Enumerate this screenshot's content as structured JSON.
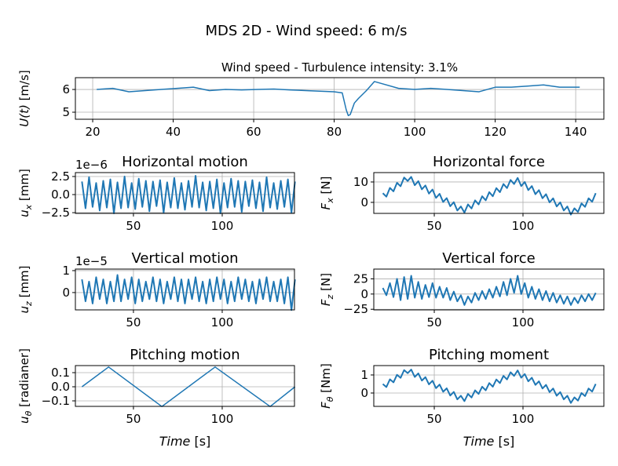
{
  "title": "MDS 2D - Wind speed: 6 m/s",
  "chart_data": [
    {
      "type": "line",
      "title": "Wind speed - Turbulence intensity: 3.1%",
      "ylabel": {
        "symbol": "U(t)",
        "unit": " [m/s]"
      },
      "color": "#1f77b4",
      "grid": true,
      "x": [
        21,
        25,
        29,
        33,
        37,
        41,
        45,
        49,
        53,
        57,
        61,
        65,
        69,
        73,
        77,
        80,
        82,
        83,
        83.5,
        84,
        85,
        86,
        88,
        90,
        92,
        96,
        100,
        104,
        108,
        112,
        116,
        120,
        124,
        128,
        132,
        136,
        141
      ],
      "values": [
        6.0,
        6.05,
        5.9,
        5.95,
        6.0,
        6.05,
        6.1,
        5.95,
        6.0,
        5.98,
        6.0,
        6.02,
        5.98,
        5.95,
        5.92,
        5.9,
        5.85,
        5.1,
        4.85,
        4.9,
        5.4,
        5.6,
        5.95,
        6.35,
        6.25,
        6.05,
        6.0,
        6.05,
        6.0,
        5.95,
        5.9,
        6.1,
        6.1,
        6.15,
        6.2,
        6.1,
        6.1
      ],
      "xlim": [
        15.7,
        147
      ],
      "ylim": [
        4.69,
        6.52
      ],
      "xticks": [
        20,
        40,
        60,
        80,
        100,
        120,
        140
      ],
      "yticks": [
        5,
        6
      ]
    },
    {
      "type": "line",
      "title": "Horizontal motion",
      "ylabel": {
        "symbol": "u",
        "sub": "x",
        "unit": " [mm]"
      },
      "y_offset_label": "1e−6",
      "color": "#1f77b4",
      "grid": true,
      "x": [
        21,
        23,
        25,
        27,
        29,
        31,
        33,
        35,
        37,
        39,
        41,
        43,
        45,
        47,
        49,
        51,
        53,
        55,
        57,
        59,
        61,
        63,
        65,
        67,
        69,
        71,
        73,
        75,
        77,
        79,
        81,
        83,
        85,
        87,
        89,
        91,
        93,
        95,
        97,
        99,
        101,
        103,
        105,
        107,
        109,
        111,
        113,
        115,
        117,
        119,
        121,
        123,
        125,
        127,
        129,
        131,
        133,
        135,
        137,
        139,
        141
      ],
      "values": [
        1.8,
        -1.9,
        2.4,
        -1.7,
        1.6,
        -2.2,
        1.9,
        -1.8,
        2.1,
        -2.6,
        1.7,
        -1.9,
        2.5,
        -1.8,
        1.6,
        -2.0,
        2.2,
        -1.7,
        1.9,
        -2.3,
        1.8,
        -1.6,
        2.0,
        -2.5,
        1.7,
        -1.8,
        2.3,
        -1.9,
        1.6,
        -2.1,
        1.9,
        -1.7,
        2.6,
        -1.8,
        1.7,
        -2.2,
        1.8,
        -1.9,
        2.1,
        -2.6,
        1.6,
        -1.8,
        2.2,
        -1.7,
        1.9,
        -2.4,
        1.8,
        -1.6,
        2.0,
        -1.9,
        1.7,
        -2.3,
        2.4,
        -1.8,
        1.6,
        -2.0,
        1.9,
        -1.7,
        2.1,
        -2.5,
        1.8
      ],
      "xlim": [
        17.3,
        140.7
      ],
      "ylim": [
        -2.6,
        3.04
      ],
      "xticks": [
        50,
        100
      ],
      "yticks": [
        {
          "value": -2.5,
          "label": "−2.5"
        },
        {
          "value": 0,
          "label": "0.0"
        },
        2.5
      ]
    },
    {
      "type": "line",
      "title": "Horizontal force",
      "ylabel": {
        "symbol": "F",
        "sub": "x",
        "unit": " [N]"
      },
      "color": "#1f77b4",
      "grid": true,
      "x": [
        21,
        23,
        25,
        27,
        29,
        31,
        33,
        35,
        37,
        39,
        41,
        43,
        45,
        47,
        49,
        51,
        53,
        55,
        57,
        59,
        61,
        63,
        65,
        67,
        69,
        71,
        73,
        75,
        77,
        79,
        81,
        83,
        85,
        87,
        89,
        91,
        93,
        95,
        97,
        99,
        101,
        103,
        105,
        107,
        109,
        111,
        113,
        115,
        117,
        119,
        121,
        123,
        125,
        127,
        129,
        131,
        133,
        135,
        137,
        139,
        141
      ],
      "values": [
        4.5,
        2.8,
        7.1,
        5.4,
        9.6,
        7.9,
        12.2,
        10.5,
        12.5,
        8.4,
        10.4,
        6.4,
        8.3,
        4.3,
        6.3,
        2.2,
        4.2,
        0.2,
        2.1,
        -1.9,
        0.1,
        -4.0,
        -2.0,
        -5.0,
        -1.0,
        -3.0,
        1.0,
        -1.0,
        3.0,
        1.0,
        5.0,
        3.0,
        7.0,
        5.0,
        9.0,
        7.0,
        11.0,
        9.0,
        12.0,
        8.0,
        10.0,
        6.0,
        8.0,
        4.0,
        6.0,
        2.0,
        4.0,
        0.0,
        2.0,
        -2.0,
        0.0,
        -4.0,
        -2.0,
        -6.0,
        -2.9,
        -4.7,
        -0.5,
        -2.2,
        2.0,
        0.3,
        4.5
      ],
      "xlim": [
        15.9,
        145.6
      ],
      "ylim": [
        -5.4,
        14.6
      ],
      "xticks": [
        50,
        100
      ],
      "yticks": [
        0,
        10
      ]
    },
    {
      "type": "line",
      "title": "Vertical motion",
      "ylabel": {
        "symbol": "u",
        "sub": "z",
        "unit": " [mm]"
      },
      "y_offset_label": "1e−5",
      "color": "#1f77b4",
      "grid": true,
      "x": [
        21,
        23,
        25,
        27,
        29,
        31,
        33,
        35,
        37,
        39,
        41,
        43,
        45,
        47,
        49,
        51,
        53,
        55,
        57,
        59,
        61,
        63,
        65,
        67,
        69,
        71,
        73,
        75,
        77,
        79,
        81,
        83,
        85,
        87,
        89,
        91,
        93,
        95,
        97,
        99,
        101,
        103,
        105,
        107,
        109,
        111,
        113,
        115,
        117,
        119,
        121,
        123,
        125,
        127,
        129,
        131,
        133,
        135,
        137,
        139,
        141
      ],
      "values": [
        0.6,
        -0.4,
        0.5,
        -0.5,
        0.7,
        -0.3,
        0.6,
        -0.5,
        0.5,
        -0.4,
        0.8,
        -0.4,
        0.6,
        -0.3,
        0.7,
        -0.5,
        0.6,
        -0.4,
        0.5,
        -0.3,
        0.7,
        -0.4,
        0.6,
        -0.5,
        0.5,
        -0.3,
        0.7,
        -0.4,
        0.6,
        -0.5,
        0.6,
        -0.3,
        0.7,
        -0.4,
        0.5,
        -0.5,
        0.6,
        -0.4,
        0.7,
        -0.3,
        0.6,
        -0.5,
        0.5,
        -0.4,
        0.7,
        -0.3,
        0.6,
        -0.4,
        0.5,
        -0.5,
        0.6,
        -0.3,
        0.7,
        -0.4,
        0.5,
        -0.4,
        0.6,
        -0.5,
        0.7,
        -0.8,
        0.6
      ],
      "xlim": [
        17.3,
        140.7
      ],
      "ylim": [
        -0.79,
        1.07
      ],
      "xticks": [
        50,
        100
      ],
      "yticks": [
        0,
        1
      ]
    },
    {
      "type": "line",
      "title": "Vertical force",
      "ylabel": {
        "symbol": "F",
        "sub": "z",
        "unit": " [N]"
      },
      "color": "#1f77b4",
      "grid": true,
      "x": [
        21,
        23,
        25,
        27,
        29,
        31,
        33,
        35,
        37,
        39,
        41,
        43,
        45,
        47,
        49,
        51,
        53,
        55,
        57,
        59,
        61,
        63,
        65,
        67,
        69,
        71,
        73,
        75,
        77,
        79,
        81,
        83,
        85,
        87,
        89,
        91,
        93,
        95,
        97,
        99,
        101,
        103,
        105,
        107,
        109,
        111,
        113,
        115,
        117,
        119,
        121,
        123,
        125,
        127,
        129,
        131,
        133,
        135,
        137,
        139,
        141
      ],
      "values": [
        10,
        -2,
        18,
        -5,
        25,
        -10,
        28,
        -8,
        30,
        -6,
        20,
        -8,
        15,
        -5,
        18,
        -6,
        12,
        -6,
        10,
        -10,
        4,
        -12,
        -2,
        -18,
        -4,
        -14,
        2,
        -10,
        5,
        -8,
        8,
        -6,
        12,
        -4,
        20,
        -2,
        25,
        2,
        30,
        0,
        18,
        -6,
        12,
        -8,
        8,
        -10,
        5,
        -12,
        2,
        -14,
        -2,
        -16,
        -4,
        -18,
        -6,
        -15,
        -2,
        -12,
        0,
        -10,
        2
      ],
      "xlim": [
        15.9,
        145.6
      ],
      "ylim": [
        -26,
        41
      ],
      "xticks": [
        50,
        100
      ],
      "yticks": [
        {
          "value": -25,
          "label": "−25"
        },
        0,
        25
      ]
    },
    {
      "type": "line",
      "title": "Pitching motion",
      "ylabel": {
        "symbol": "u",
        "sub": "θ",
        "unit": " [radianer]"
      },
      "xlabel": {
        "symbol": "Time",
        "unit": " [s]"
      },
      "color": "#1f77b4",
      "grid": true,
      "x": [
        21,
        36,
        66,
        96,
        127,
        141
      ],
      "values": [
        0,
        0.14,
        -0.14,
        0.14,
        -0.14,
        0
      ],
      "xlim": [
        17.3,
        140.7
      ],
      "ylim": [
        -0.139,
        0.15
      ],
      "xticks": [
        50,
        100
      ],
      "yticks": [
        {
          "value": -0.1,
          "label": "−0.1"
        },
        {
          "value": 0,
          "label": "0.0"
        },
        0.1
      ]
    },
    {
      "type": "line",
      "title": "Pitching moment",
      "ylabel": {
        "symbol": "F",
        "sub": "θ",
        "unit": " [Nm]"
      },
      "xlabel": {
        "symbol": "Time",
        "unit": " [s]"
      },
      "color": "#1f77b4",
      "grid": true,
      "x": [
        21,
        23,
        25,
        27,
        29,
        31,
        33,
        35,
        37,
        39,
        41,
        43,
        45,
        47,
        49,
        51,
        53,
        55,
        57,
        59,
        61,
        63,
        65,
        67,
        69,
        71,
        73,
        75,
        77,
        79,
        81,
        83,
        85,
        87,
        89,
        91,
        93,
        95,
        97,
        99,
        101,
        103,
        105,
        107,
        109,
        111,
        113,
        115,
        117,
        119,
        121,
        123,
        125,
        127,
        129,
        131,
        133,
        135,
        137,
        139,
        141
      ],
      "values": [
        0.5,
        0.33,
        0.76,
        0.59,
        1.01,
        0.84,
        1.27,
        1.1,
        1.3,
        0.89,
        1.09,
        0.69,
        0.88,
        0.48,
        0.68,
        0.27,
        0.47,
        0.07,
        0.26,
        -0.14,
        0.06,
        -0.35,
        -0.15,
        -0.45,
        -0.05,
        -0.25,
        0.15,
        -0.05,
        0.35,
        0.15,
        0.55,
        0.35,
        0.75,
        0.55,
        0.95,
        0.75,
        1.15,
        0.95,
        1.25,
        0.85,
        1.05,
        0.65,
        0.85,
        0.45,
        0.65,
        0.25,
        0.45,
        0.05,
        0.25,
        -0.15,
        0.05,
        -0.35,
        -0.15,
        -0.55,
        -0.24,
        -0.42,
        0,
        -0.17,
        0.25,
        0.08,
        0.5
      ],
      "xlim": [
        15.9,
        145.6
      ],
      "ylim": [
        -0.74,
        1.52
      ],
      "xticks": [
        50,
        100
      ],
      "yticks": [
        0,
        1
      ]
    }
  ]
}
